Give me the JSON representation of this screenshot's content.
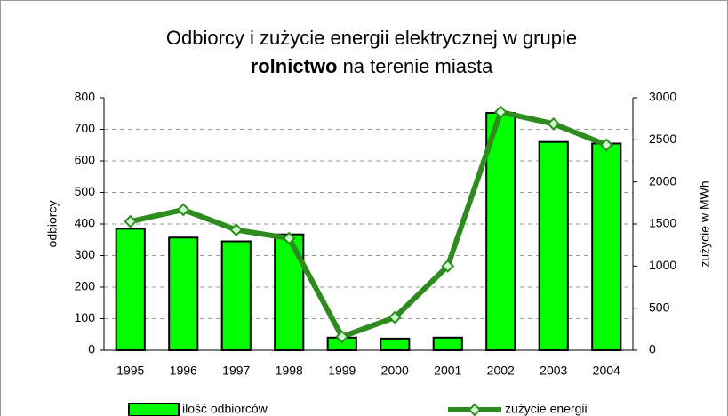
{
  "chart_data": {
    "type": "bar-line",
    "title": {
      "line1": "Odbiorcy i zużycie energii elektrycznej w grupie",
      "bold": "rolnictwo",
      "rest": " na terenie miasta"
    },
    "ylabel": "odbiorcy",
    "y2label": "zużycie w MWh",
    "categories": [
      "1995",
      "1996",
      "1997",
      "1998",
      "1999",
      "2000",
      "2001",
      "2002",
      "2003",
      "2004"
    ],
    "series": [
      {
        "name": "ilość odbiorców",
        "color": "#00ff00",
        "type": "bar",
        "values": [
          385,
          357,
          345,
          367,
          40,
          37,
          40,
          752,
          660,
          655
        ]
      },
      {
        "name": "zużycie energii",
        "color": "#2e8b1e",
        "type": "line",
        "axis": "y2",
        "values": [
          1530,
          1670,
          1430,
          1330,
          160,
          390,
          1000,
          2830,
          2690,
          2440
        ]
      }
    ],
    "ylim": [
      0,
      800
    ],
    "yticks": [
      0,
      100,
      200,
      300,
      400,
      500,
      600,
      700,
      800
    ],
    "y2lim": [
      0,
      3000
    ],
    "y2ticks": [
      0,
      500,
      1000,
      1500,
      2000,
      2500,
      3000
    ],
    "grid": true,
    "legend": "bottom"
  }
}
